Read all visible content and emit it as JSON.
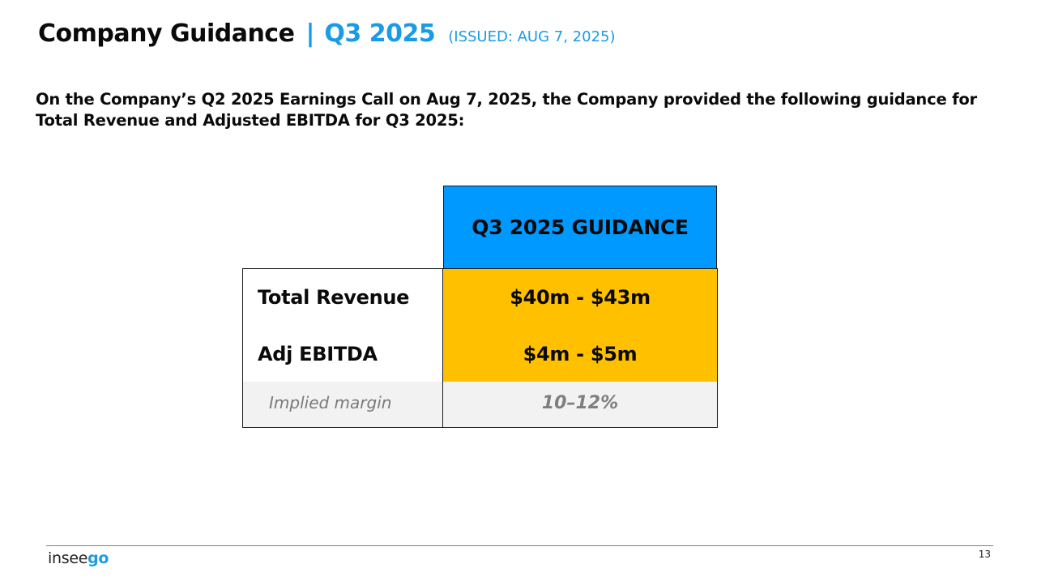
{
  "header": {
    "title": "Company Guidance",
    "separator": "|",
    "period": "Q3 2025",
    "issued": "(ISSUED: AUG 7, 2025)"
  },
  "intro_text": "On the Company’s Q2 2025 Earnings Call on Aug 7, 2025, the Company provided the following guidance for Total Revenue and Adjusted EBITDA for Q3 2025:",
  "guidance_table": {
    "column_header": "Q3 2025 GUIDANCE",
    "rows": [
      {
        "label": "Total Revenue",
        "value": "$40m - $43m"
      },
      {
        "label": "Adj EBITDA",
        "value": "$4m - $5m"
      },
      {
        "label": "Implied margin",
        "value": "10–12%"
      }
    ]
  },
  "footer": {
    "logo_part1": "insee",
    "logo_part2": "go",
    "page_number": "13"
  },
  "colors": {
    "accent_blue": "#1a9be8",
    "header_blue": "#0099ff",
    "highlight_yellow": "#ffc000",
    "muted_gray": "#f2f2f2"
  }
}
